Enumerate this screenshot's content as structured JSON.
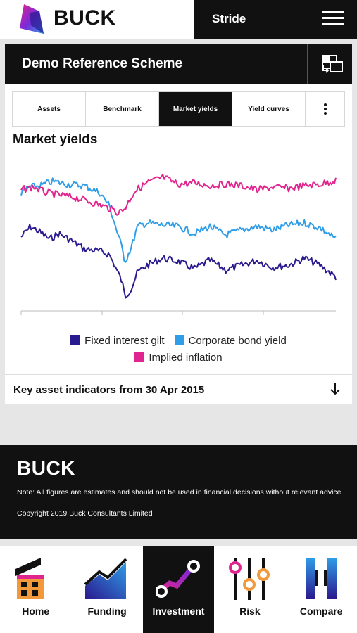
{
  "header": {
    "brand": "BUCK",
    "product": "Stride"
  },
  "scheme": {
    "title": "Demo Reference Scheme"
  },
  "tabs": [
    {
      "label": "Assets",
      "active": false
    },
    {
      "label": "Benchmark",
      "active": false
    },
    {
      "label": "Market yields",
      "active": true
    },
    {
      "label": "Yield curves",
      "active": false
    }
  ],
  "section": {
    "title": "Market yields"
  },
  "chart_data": {
    "type": "line",
    "title": "Market yields",
    "series": [
      {
        "name": "Fixed interest gilt",
        "color": "#2a1a8f"
      },
      {
        "name": "Corporate bond yield",
        "color": "#2f9de8"
      },
      {
        "name": "Implied inflation",
        "color": "#e0258f"
      }
    ]
  },
  "key_asset_indicators": {
    "label": "Key asset indicators from 30 Apr 2015"
  },
  "footer": {
    "brand": "BUCK",
    "note": "Note: All figures are estimates and should not be used in financial decisions without relevant advice",
    "copyright": "Copyright 2019 Buck Consultants Limited"
  },
  "nav": [
    {
      "label": "Home",
      "icon": "home-icon",
      "active": false
    },
    {
      "label": "Funding",
      "icon": "funding-icon",
      "active": false
    },
    {
      "label": "Investment",
      "icon": "investment-icon",
      "active": true
    },
    {
      "label": "Risk",
      "icon": "risk-icon",
      "active": false
    },
    {
      "label": "Compare",
      "icon": "compare-icon",
      "active": false
    }
  ],
  "colors": {
    "brand_black": "#111111",
    "gilt": "#2a1a8f",
    "corporate": "#2f9de8",
    "inflation": "#e0258f"
  }
}
